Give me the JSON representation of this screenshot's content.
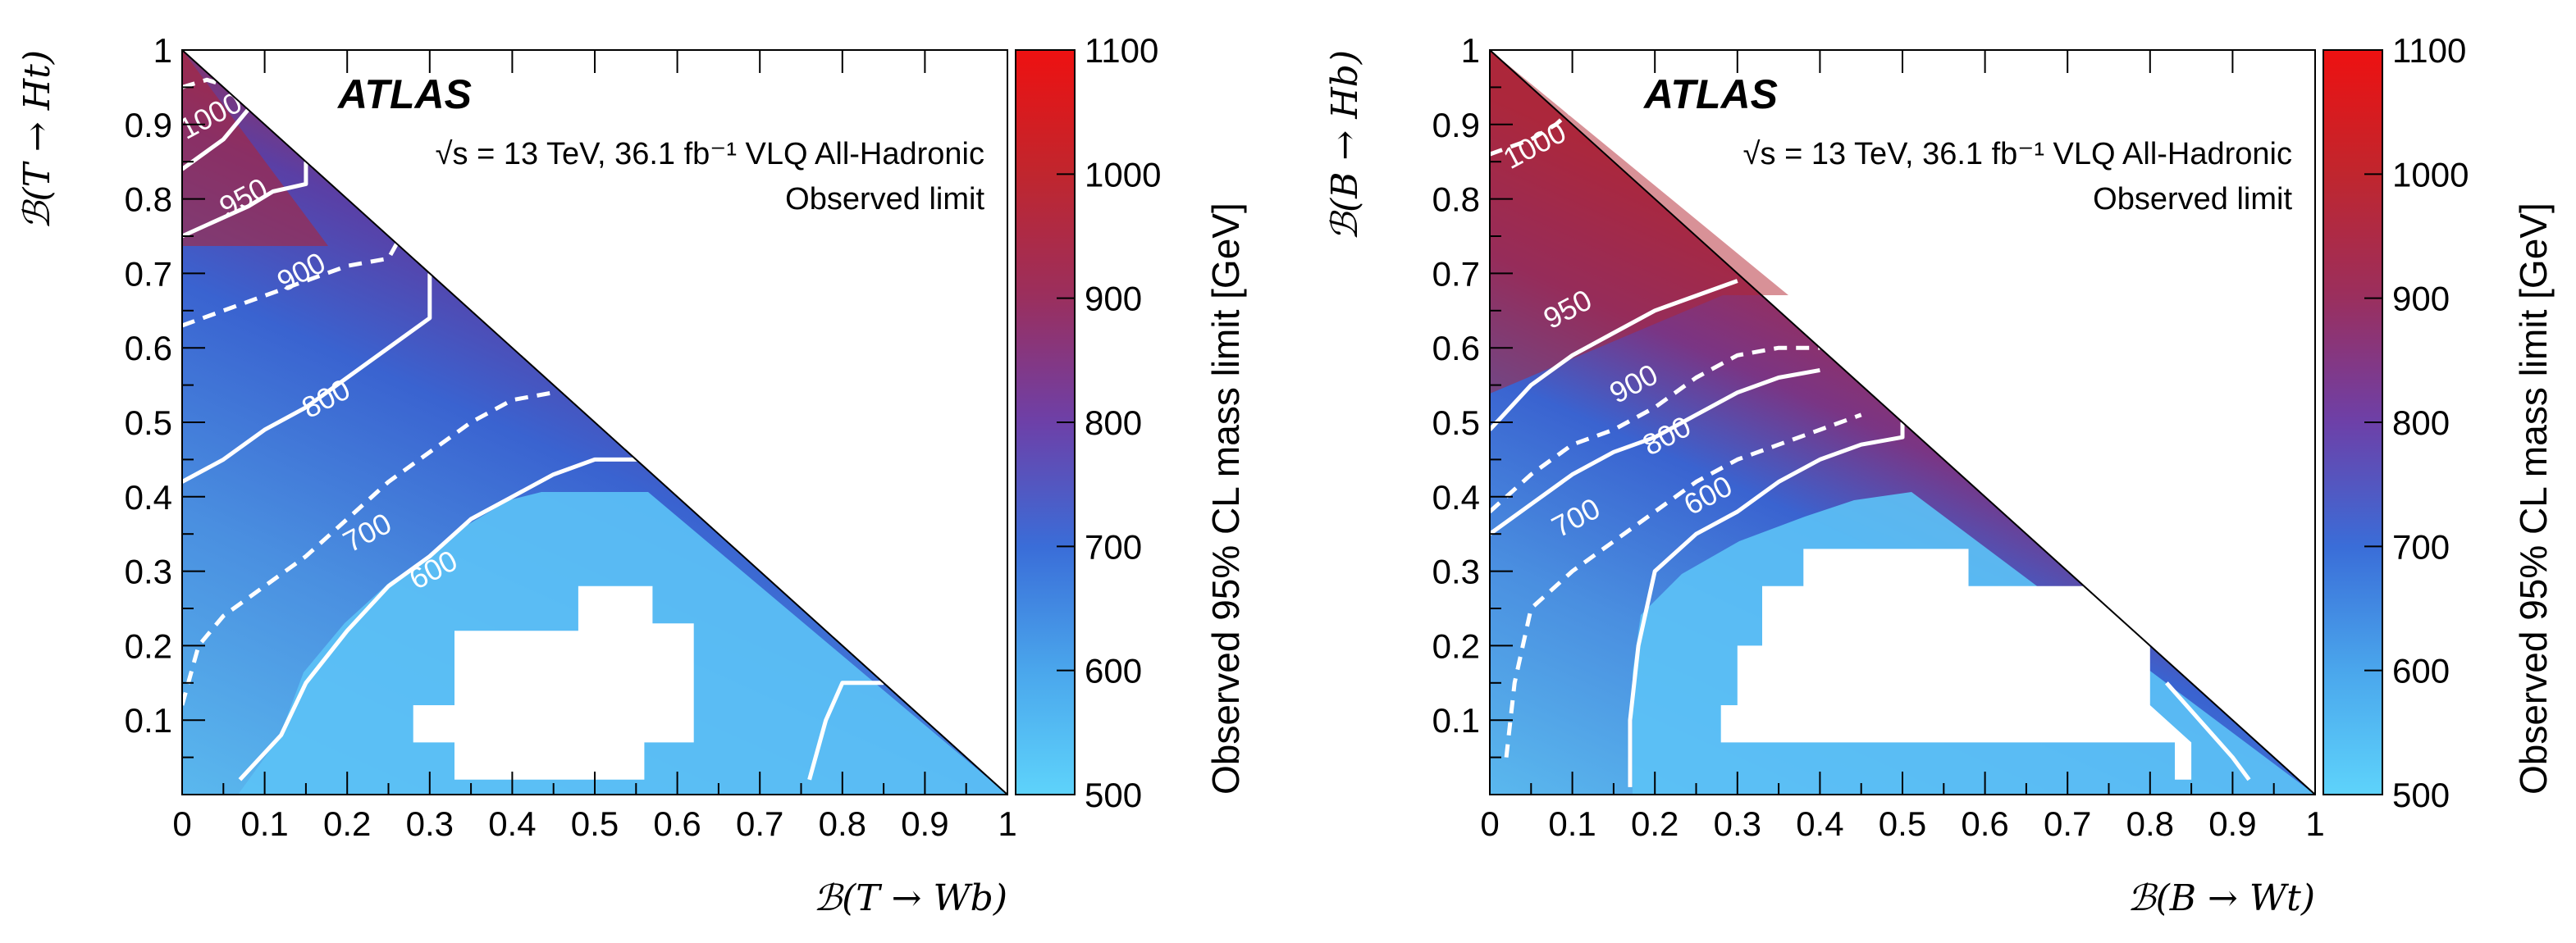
{
  "chart_data": [
    {
      "type": "heatmap",
      "panel": "left",
      "experiment": "ATLAS",
      "energy_label": "√s = 13 TeV, 36.1 fb⁻¹ VLQ All-Hadronic",
      "limit_label": "Observed limit",
      "xlabel": "𝒷(T → Wb)",
      "xlabel_text": "ℬ(T → Wb)",
      "ylabel_text": "ℬ(T → Ht)",
      "xlim": [
        0,
        1
      ],
      "ylim": [
        0,
        1
      ],
      "x_ticks": [
        "0",
        "0.1",
        "0.2",
        "0.3",
        "0.4",
        "0.5",
        "0.6",
        "0.7",
        "0.8",
        "0.9",
        "1"
      ],
      "y_ticks": [
        "0.1",
        "0.2",
        "0.3",
        "0.4",
        "0.5",
        "0.6",
        "0.7",
        "0.8",
        "0.9",
        "1"
      ],
      "colorbar": {
        "title": "Observed 95% CL mass limit [GeV]",
        "range": [
          500,
          1100
        ],
        "ticks": [
          "500",
          "600",
          "700",
          "800",
          "900",
          "1000",
          "1100"
        ]
      },
      "contours": [
        {
          "level": "1000",
          "style": "dashed",
          "points": [
            [
              0.0,
              0.95
            ],
            [
              0.03,
              0.96
            ],
            [
              0.06,
              0.95
            ]
          ]
        },
        {
          "level": "1000",
          "style": "solid",
          "points": [
            [
              0.0,
              0.84
            ],
            [
              0.05,
              0.88
            ],
            [
              0.08,
              0.92
            ]
          ]
        },
        {
          "level": "950",
          "style": "solid",
          "points": [
            [
              0.0,
              0.75
            ],
            [
              0.04,
              0.77
            ],
            [
              0.08,
              0.79
            ],
            [
              0.11,
              0.81
            ],
            [
              0.15,
              0.82
            ],
            [
              0.15,
              0.85
            ]
          ]
        },
        {
          "level": "900",
          "style": "dashed",
          "points": [
            [
              0.0,
              0.63
            ],
            [
              0.05,
              0.65
            ],
            [
              0.1,
              0.67
            ],
            [
              0.15,
              0.69
            ],
            [
              0.2,
              0.71
            ],
            [
              0.25,
              0.72
            ],
            [
              0.26,
              0.74
            ]
          ]
        },
        {
          "level": "800",
          "style": "solid",
          "points": [
            [
              0.0,
              0.42
            ],
            [
              0.05,
              0.45
            ],
            [
              0.1,
              0.49
            ],
            [
              0.15,
              0.52
            ],
            [
              0.2,
              0.56
            ],
            [
              0.25,
              0.6
            ],
            [
              0.3,
              0.64
            ],
            [
              0.3,
              0.7
            ]
          ]
        },
        {
          "level": "700",
          "style": "dashed",
          "points": [
            [
              0.0,
              0.12
            ],
            [
              0.02,
              0.2
            ],
            [
              0.05,
              0.24
            ],
            [
              0.1,
              0.28
            ],
            [
              0.15,
              0.32
            ],
            [
              0.2,
              0.37
            ],
            [
              0.25,
              0.42
            ],
            [
              0.3,
              0.46
            ],
            [
              0.35,
              0.5
            ],
            [
              0.4,
              0.53
            ],
            [
              0.45,
              0.54
            ]
          ]
        },
        {
          "level": "600",
          "style": "solid",
          "points": [
            [
              0.07,
              0.02
            ],
            [
              0.12,
              0.08
            ],
            [
              0.15,
              0.15
            ],
            [
              0.2,
              0.22
            ],
            [
              0.25,
              0.28
            ],
            [
              0.3,
              0.32
            ],
            [
              0.35,
              0.37
            ],
            [
              0.4,
              0.4
            ],
            [
              0.45,
              0.43
            ],
            [
              0.5,
              0.45
            ],
            [
              0.56,
              0.45
            ]
          ]
        },
        {
          "level": "600",
          "style": "solid",
          "points": [
            [
              0.76,
              0.02
            ],
            [
              0.78,
              0.1
            ],
            [
              0.8,
              0.15
            ],
            [
              0.85,
              0.15
            ]
          ]
        }
      ],
      "contour_labels": [
        {
          "text": "1000",
          "x": 0.04,
          "y": 0.9
        },
        {
          "text": "950",
          "x": 0.08,
          "y": 0.79
        },
        {
          "text": "900",
          "x": 0.15,
          "y": 0.69
        },
        {
          "text": "800",
          "x": 0.18,
          "y": 0.52
        },
        {
          "text": "700",
          "x": 0.23,
          "y": 0.34
        },
        {
          "text": "600",
          "x": 0.31,
          "y": 0.29
        }
      ],
      "white_regions": [
        [
          [
            0.48,
            0.28
          ],
          [
            0.57,
            0.28
          ],
          [
            0.57,
            0.23
          ],
          [
            0.62,
            0.23
          ],
          [
            0.62,
            0.07
          ],
          [
            0.56,
            0.07
          ],
          [
            0.56,
            0.02
          ],
          [
            0.38,
            0.02
          ],
          [
            0.38,
            0.02
          ],
          [
            0.33,
            0.02
          ],
          [
            0.33,
            0.07
          ],
          [
            0.28,
            0.07
          ],
          [
            0.28,
            0.12
          ],
          [
            0.33,
            0.12
          ],
          [
            0.33,
            0.22
          ],
          [
            0.48,
            0.22
          ]
        ]
      ]
    },
    {
      "type": "heatmap",
      "panel": "right",
      "experiment": "ATLAS",
      "energy_label": "√s = 13 TeV, 36.1 fb⁻¹ VLQ All-Hadronic",
      "limit_label": "Observed limit",
      "xlabel_text": "ℬ(B → Wt)",
      "ylabel_text": "ℬ(B → Hb)",
      "xlim": [
        0,
        1
      ],
      "ylim": [
        0,
        1
      ],
      "x_ticks": [
        "0",
        "0.1",
        "0.2",
        "0.3",
        "0.4",
        "0.5",
        "0.6",
        "0.7",
        "0.8",
        "0.9",
        "1"
      ],
      "y_ticks": [
        "0.1",
        "0.2",
        "0.3",
        "0.4",
        "0.5",
        "0.6",
        "0.7",
        "0.8",
        "0.9",
        "1"
      ],
      "colorbar": {
        "title": "Observed 95% CL mass limit [GeV]",
        "range": [
          500,
          1100
        ],
        "ticks": [
          "500",
          "600",
          "700",
          "800",
          "900",
          "1000",
          "1100"
        ]
      },
      "contours": [
        {
          "level": "1000",
          "style": "dashed",
          "points": [
            [
              0.0,
              0.86
            ],
            [
              0.05,
              0.88
            ],
            [
              0.08,
              0.9
            ],
            [
              0.1,
              0.92
            ]
          ]
        },
        {
          "level": "950",
          "style": "solid",
          "points": [
            [
              0.0,
              0.49
            ],
            [
              0.05,
              0.55
            ],
            [
              0.1,
              0.59
            ],
            [
              0.15,
              0.62
            ],
            [
              0.2,
              0.65
            ],
            [
              0.25,
              0.67
            ],
            [
              0.3,
              0.69
            ]
          ]
        },
        {
          "level": "900",
          "style": "dashed",
          "points": [
            [
              0.0,
              0.38
            ],
            [
              0.05,
              0.43
            ],
            [
              0.1,
              0.47
            ],
            [
              0.15,
              0.49
            ],
            [
              0.2,
              0.52
            ],
            [
              0.25,
              0.56
            ],
            [
              0.3,
              0.59
            ],
            [
              0.35,
              0.6
            ],
            [
              0.4,
              0.6
            ]
          ]
        },
        {
          "level": "800",
          "style": "solid",
          "points": [
            [
              0.0,
              0.35
            ],
            [
              0.05,
              0.39
            ],
            [
              0.1,
              0.43
            ],
            [
              0.15,
              0.46
            ],
            [
              0.2,
              0.48
            ],
            [
              0.25,
              0.51
            ],
            [
              0.3,
              0.54
            ],
            [
              0.35,
              0.56
            ],
            [
              0.4,
              0.57
            ]
          ]
        },
        {
          "level": "700",
          "style": "dashed",
          "points": [
            [
              0.02,
              0.05
            ],
            [
              0.03,
              0.15
            ],
            [
              0.05,
              0.25
            ],
            [
              0.1,
              0.3
            ],
            [
              0.15,
              0.34
            ],
            [
              0.2,
              0.38
            ],
            [
              0.25,
              0.42
            ],
            [
              0.3,
              0.45
            ],
            [
              0.35,
              0.47
            ],
            [
              0.4,
              0.49
            ],
            [
              0.45,
              0.51
            ]
          ]
        },
        {
          "level": "600",
          "style": "solid",
          "points": [
            [
              0.17,
              0.01
            ],
            [
              0.17,
              0.1
            ],
            [
              0.18,
              0.2
            ],
            [
              0.2,
              0.3
            ],
            [
              0.25,
              0.35
            ],
            [
              0.3,
              0.38
            ],
            [
              0.35,
              0.42
            ],
            [
              0.4,
              0.45
            ],
            [
              0.45,
              0.47
            ],
            [
              0.5,
              0.48
            ],
            [
              0.5,
              0.5
            ]
          ]
        },
        {
          "level": "600",
          "style": "solid",
          "points": [
            [
              0.82,
              0.15
            ],
            [
              0.9,
              0.05
            ],
            [
              0.92,
              0.02
            ]
          ]
        }
      ],
      "contour_labels": [
        {
          "text": "1000",
          "x": 0.06,
          "y": 0.86
        },
        {
          "text": "950",
          "x": 0.1,
          "y": 0.64
        },
        {
          "text": "900",
          "x": 0.18,
          "y": 0.54
        },
        {
          "text": "800",
          "x": 0.22,
          "y": 0.47
        },
        {
          "text": "700",
          "x": 0.11,
          "y": 0.36
        },
        {
          "text": "600",
          "x": 0.27,
          "y": 0.39
        }
      ],
      "white_regions": [
        [
          [
            0.38,
            0.33
          ],
          [
            0.58,
            0.33
          ],
          [
            0.58,
            0.28
          ],
          [
            0.72,
            0.28
          ],
          [
            0.8,
            0.2
          ],
          [
            0.8,
            0.12
          ],
          [
            0.85,
            0.07
          ],
          [
            0.85,
            0.02
          ],
          [
            0.83,
            0.02
          ],
          [
            0.83,
            0.07
          ],
          [
            0.28,
            0.07
          ],
          [
            0.28,
            0.12
          ],
          [
            0.3,
            0.12
          ],
          [
            0.3,
            0.2
          ],
          [
            0.33,
            0.2
          ],
          [
            0.33,
            0.28
          ],
          [
            0.38,
            0.28
          ]
        ]
      ]
    }
  ]
}
